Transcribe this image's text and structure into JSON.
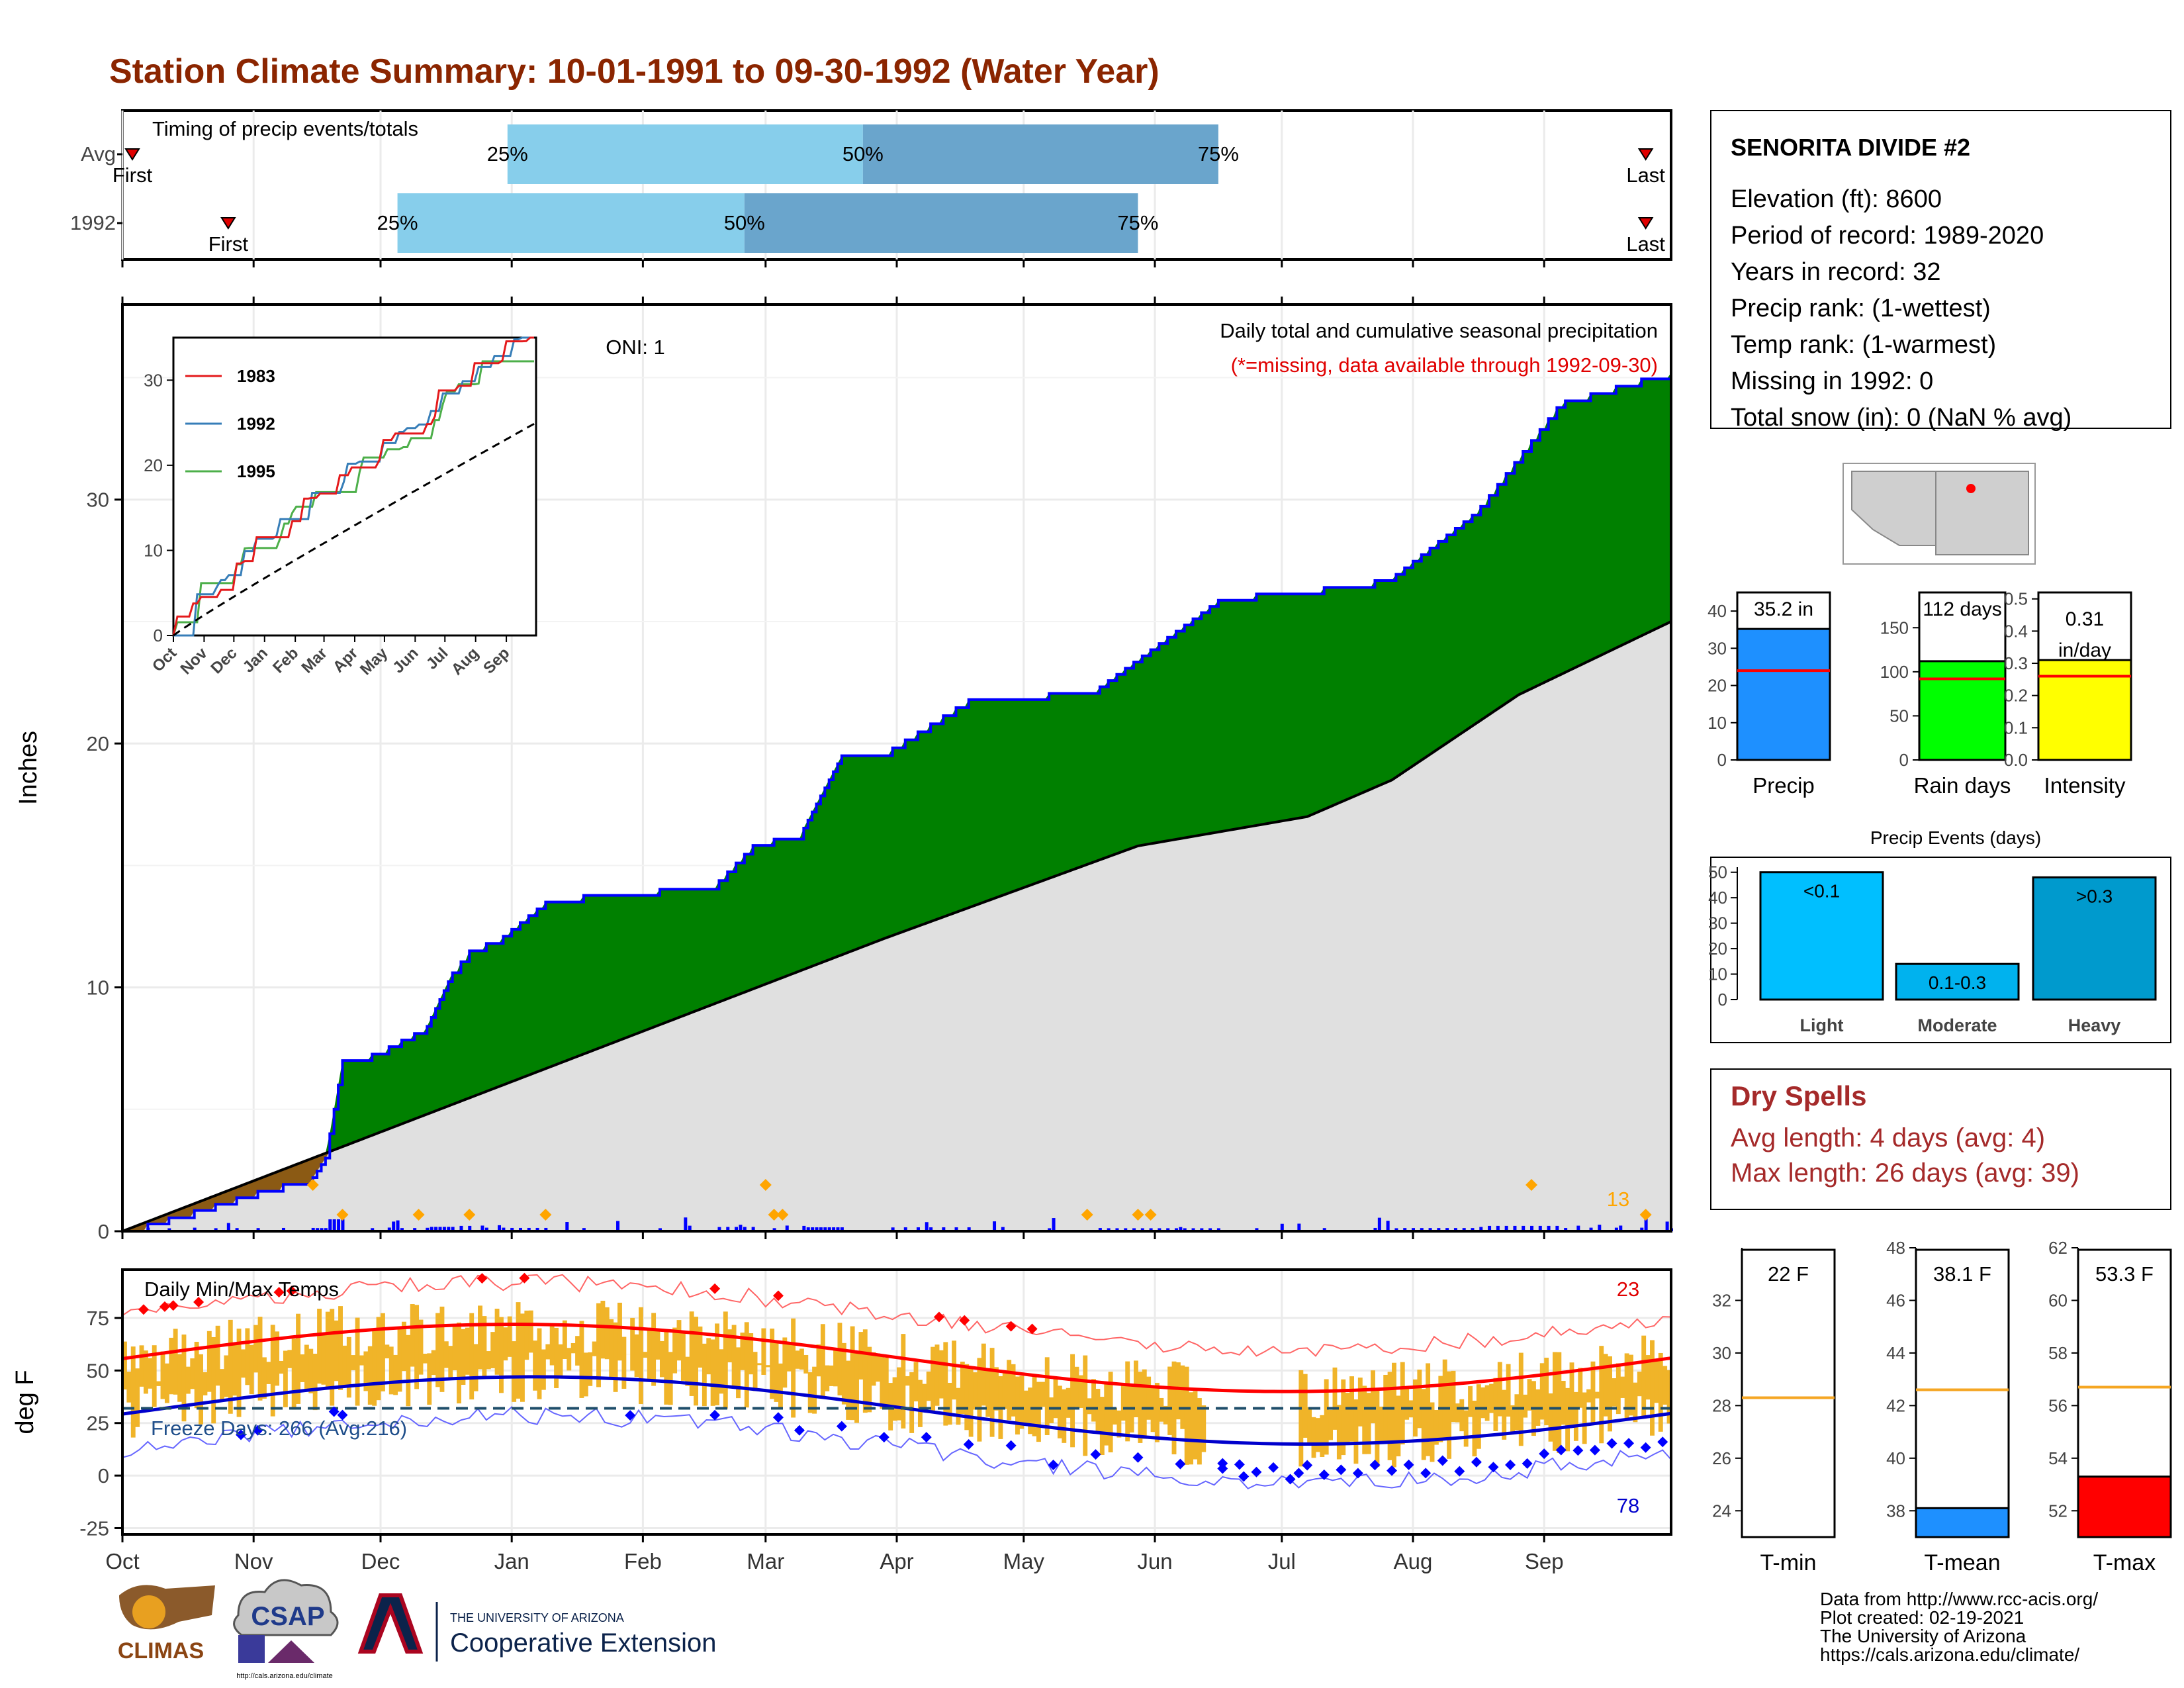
{
  "title": "Station Climate Summary: 10-01-1991 to 09-30-1992 (Water Year)",
  "timing": {
    "title": "Timing of precip events/totals",
    "rows": [
      {
        "label": "Avg",
        "first_label": "First",
        "last_label": "Last",
        "first_day": 1,
        "last_day": 360,
        "p25_label": "25%",
        "p50_label": "50%",
        "p75_label": "75%",
        "p25": 91,
        "p50": 175,
        "p75": 259
      },
      {
        "label": "1992",
        "first_label": "First",
        "last_label": "Last",
        "first_day": 25,
        "last_day": 360,
        "p25_label": "25%",
        "p50_label": "50%",
        "p75_label": "75%",
        "p25": 65,
        "p50": 147,
        "p75": 240
      }
    ]
  },
  "months": [
    "Oct",
    "Nov",
    "Dec",
    "Jan",
    "Feb",
    "Mar",
    "Apr",
    "May",
    "Jun",
    "Jul",
    "Aug",
    "Sep"
  ],
  "precip": {
    "ylabel": "Inches",
    "oni": "ONI: 1",
    "subtitle": "Daily total and cumulative seasonal precipitation",
    "missing_note": "(*=missing, data available through 1992-09-30)",
    "yticks": [
      "0",
      "10",
      "20",
      "30"
    ],
    "count_label": "13"
  },
  "inset": {
    "legend": [
      {
        "name": "1983",
        "color": "#e41a1c"
      },
      {
        "name": "1992",
        "color": "#377eb8"
      },
      {
        "name": "1995",
        "color": "#4daf4a"
      }
    ],
    "yticks": [
      "0",
      "10",
      "20",
      "30"
    ],
    "xticks": [
      "Oct",
      "Nov",
      "Dec",
      "Jan",
      "Feb",
      "Mar",
      "Apr",
      "May",
      "Jun",
      "Jul",
      "Aug",
      "Sep"
    ]
  },
  "temps": {
    "title": "Daily Min/Max Temps",
    "ylabel": "deg F",
    "freeze": "Freeze Days: 266 (Avg:216)",
    "max_count": "23",
    "min_count": "78",
    "yticks": [
      "-25",
      "0",
      "25",
      "50",
      "75"
    ]
  },
  "station": {
    "name": "SENORITA DIVIDE #2",
    "lines": [
      "Elevation (ft): 8600",
      "Period of record: 1989-2020",
      "Years in record: 32",
      "Precip rank:  (1-wettest)",
      "Temp rank:  (1-warmest)",
      "Missing in 1992: 0",
      "Total snow (in): 0 (NaN % avg)"
    ]
  },
  "summary_bars": [
    {
      "name": "Precip",
      "label": "35.2 in",
      "value": 35.2,
      "avg": 24,
      "max": 45,
      "ticks": [
        "0",
        "10",
        "20",
        "30",
        "40"
      ],
      "tickvals": [
        0,
        10,
        20,
        30,
        40
      ],
      "color": "#1e90ff"
    },
    {
      "name": "Rain days",
      "label": "112 days",
      "value": 112,
      "avg": 92,
      "max": 190,
      "ticks": [
        "0",
        "50",
        "100",
        "150"
      ],
      "tickvals": [
        0,
        50,
        100,
        150
      ],
      "color": "#00ff00"
    },
    {
      "name": "Intensity",
      "label1": "0.31",
      "label2": "in/day",
      "value": 0.31,
      "avg": 0.26,
      "max": 0.52,
      "ticks": [
        "0.0",
        "0.1",
        "0.2",
        "0.3",
        "0.4",
        "0.5"
      ],
      "tickvals": [
        0,
        0.1,
        0.2,
        0.3,
        0.4,
        0.5
      ],
      "color": "#ffff00"
    }
  ],
  "events": {
    "title": "Precip Events (days)",
    "ticks": [
      "0",
      "10",
      "20",
      "30",
      "40",
      "50"
    ],
    "bars": [
      {
        "name": "Light",
        "label": "<0.1",
        "value": 50,
        "color": "#00bfff"
      },
      {
        "name": "Moderate",
        "label": "0.1-0.3",
        "value": 14,
        "color": "#00b2ee"
      },
      {
        "name": "Heavy",
        "label": ">0.3",
        "value": 48,
        "color": "#009acd"
      }
    ]
  },
  "dry": {
    "title": "Dry Spells",
    "avg": "Avg length: 4 days (avg: 4)",
    "max": "Max length: 26 days (avg: 39)"
  },
  "temp_bars": [
    {
      "name": "T-min",
      "label": "22 F",
      "value": 22,
      "avg": 28.3,
      "min": 23,
      "max": 34,
      "ticks": [
        "24",
        "26",
        "28",
        "30",
        "32"
      ],
      "tickvals": [
        24,
        26,
        28,
        30,
        32
      ],
      "color": "#ffffff"
    },
    {
      "name": "T-mean",
      "label": "38.1 F",
      "value": 38.1,
      "avg": 42.6,
      "min": 37,
      "max": 48,
      "ticks": [
        "38",
        "40",
        "42",
        "44",
        "46",
        "48"
      ],
      "tickvals": [
        38,
        40,
        42,
        44,
        46,
        48
      ],
      "color": "#1e90ff"
    },
    {
      "name": "T-max",
      "label": "53.3 F",
      "value": 53.3,
      "avg": 56.7,
      "min": 51,
      "max": 62,
      "ticks": [
        "52",
        "54",
        "56",
        "58",
        "60",
        "62"
      ],
      "tickvals": [
        52,
        54,
        56,
        58,
        60,
        62
      ],
      "color": "#ff0000"
    }
  ],
  "footer": {
    "lines": [
      "Data from http://www.rcc-acis.org/",
      "Plot created: 02-19-2021",
      "The University of Arizona",
      "https://cals.arizona.edu/climate/"
    ],
    "logos": {
      "climas": "CLIMAS",
      "csap": "CSAP",
      "csap_url": "http://cals.arizona.edu/climate",
      "ua_top": "THE UNIVERSITY OF ARIZONA",
      "ua_main": "Cooperative Extension"
    }
  },
  "chart_data": [
    {
      "type": "area",
      "title": "Daily total and cumulative seasonal precipitation",
      "ylabel": "Inches",
      "ylim": [
        0,
        38
      ],
      "x_categories": [
        "Oct",
        "Nov",
        "Dec",
        "Jan",
        "Feb",
        "Mar",
        "Apr",
        "May",
        "Jun",
        "Jul",
        "Aug",
        "Sep"
      ],
      "series": [
        {
          "name": "1992",
          "x_day": [
            0,
            20,
            35,
            45,
            48,
            52,
            60,
            70,
            72,
            78,
            82,
            90,
            100,
            110,
            125,
            140,
            150,
            160,
            170,
            180,
            200,
            230,
            260,
            290,
            300,
            320,
            340,
            360,
            366
          ],
          "values": [
            0,
            1,
            1.8,
            2.2,
            3,
            7,
            7.3,
            8.2,
            8.4,
            10.6,
            11.5,
            12.1,
            13.5,
            13.8,
            14,
            14.2,
            16,
            16.2,
            19.5,
            19.6,
            21.8,
            22.2,
            26,
            26.5,
            26.8,
            29.5,
            34,
            35,
            35.2
          ]
        },
        {
          "name": "",
          "x_day": [
            0,
            60,
            120,
            180,
            240,
            280,
            300,
            330,
            366
          ],
          "values": [
            0,
            4,
            8,
            12,
            15.8,
            17,
            18.5,
            22,
            25
          ]
        }
      ]
    },
    {
      "type": "line",
      "title": "Daily Min/Max Temps",
      "ylabel": "deg F",
      "ylim": [
        -28,
        98
      ],
      "x_categories": [
        "Oct",
        "Nov",
        "Dec",
        "Jan",
        "Feb",
        "Mar",
        "Apr",
        "May",
        "Jun",
        "Jul",
        "Aug",
        "Sep"
      ]
    },
    {
      "type": "bar",
      "title": "Precip Events (days)",
      "categories": [
        "Light",
        "Moderate",
        "Heavy"
      ],
      "values": [
        50,
        14,
        48
      ]
    }
  ]
}
